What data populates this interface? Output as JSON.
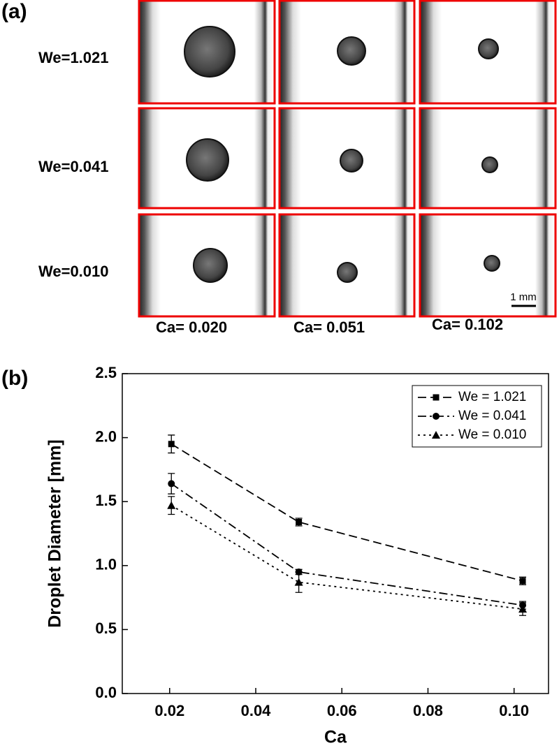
{
  "panel_a": {
    "label": "(a)",
    "row_labels": [
      "We=1.021",
      "We=0.041",
      "We=0.010"
    ],
    "column_labels": [
      "Ca= 0.020",
      "Ca= 0.051",
      "Ca= 0.102"
    ],
    "scale_bar": "1 mm"
  },
  "chart_data": {
    "type": "line",
    "panel_label": "(b)",
    "x_label": "Ca",
    "y_label": "Droplet Diameter [mm]",
    "x": [
      0.0204,
      0.05,
      0.102
    ],
    "series": [
      {
        "name": "We = 1.021",
        "color": "#000000",
        "line_style": "dashed",
        "marker": "square",
        "values": [
          1.95,
          1.34,
          0.88
        ],
        "errors": [
          0.07,
          0.03,
          0.03
        ]
      },
      {
        "name": "We = 0.041",
        "color": "#000000",
        "line_style": "dashdot",
        "marker": "circle",
        "values": [
          1.64,
          0.95,
          0.69
        ],
        "errors": [
          0.08,
          0.02,
          0.03
        ]
      },
      {
        "name": "We = 0.010",
        "color": "#000000",
        "line_style": "dotted",
        "marker": "triangle",
        "values": [
          1.47,
          0.87,
          0.66
        ],
        "errors": [
          0.07,
          0.08,
          0.05
        ]
      }
    ],
    "xlim": [
      0.009,
      0.108
    ],
    "ylim": [
      0,
      2.5
    ],
    "xticks": [
      0.02,
      0.04,
      0.06,
      0.08,
      {
        "value": 0.1,
        "label": "0.10"
      }
    ],
    "yticks": [
      {
        "value": 0,
        "label": "0.0"
      },
      0.5,
      {
        "value": 1,
        "label": "1.0"
      },
      1.5,
      {
        "value": 2,
        "label": "2.0"
      },
      2.5
    ],
    "legend": "upper right"
  }
}
